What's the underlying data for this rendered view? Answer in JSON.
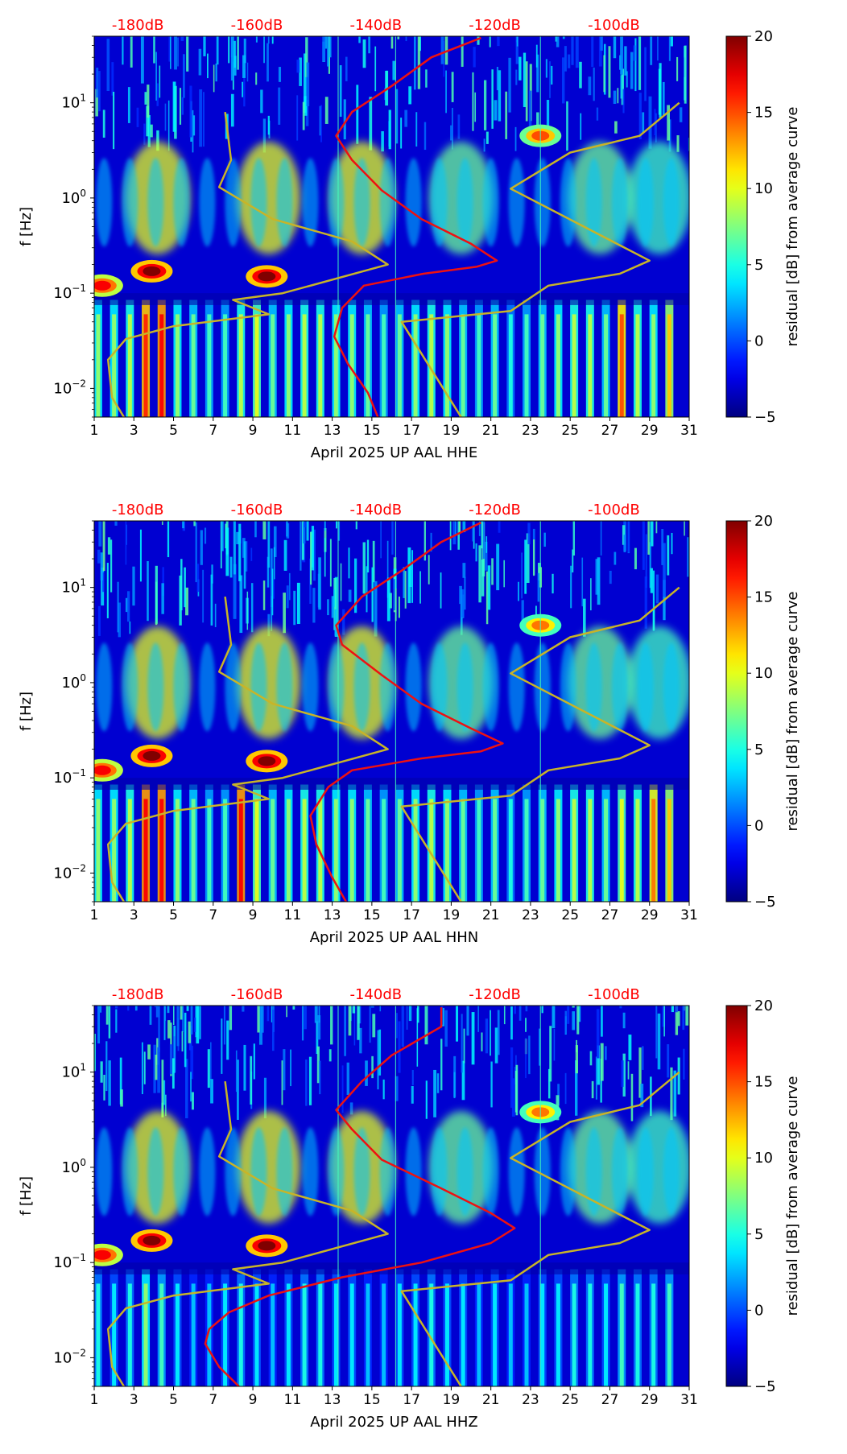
{
  "chart_data": [
    {
      "type": "heatmap",
      "channel": "HHE",
      "xlabel": "April 2025 UP AAL  HHE",
      "ylabel": "f [Hz]",
      "xlim": [
        1,
        31
      ],
      "ylim": [
        0.005,
        50
      ],
      "xticks": [
        "1",
        "3",
        "5",
        "7",
        "9",
        "11",
        "13",
        "15",
        "17",
        "19",
        "21",
        "23",
        "25",
        "27",
        "29",
        "31"
      ],
      "yticks": [
        {
          "value": 0.01,
          "base": "10",
          "exp": "−2"
        },
        {
          "value": 0.1,
          "base": "10",
          "exp": "−1"
        },
        {
          "value": 1,
          "base": "10",
          "exp": "0"
        },
        {
          "value": 10,
          "base": "10",
          "exp": "1"
        }
      ],
      "top_labels": [
        "-180dB",
        "-160dB",
        "-140dB",
        "-120dB",
        "-100dB"
      ],
      "top_label_color": "#ff0000",
      "colorbar": {
        "label": "residual [dB] from average curve",
        "min": -5,
        "max": 20,
        "ticks": [
          "−5",
          "0",
          "5",
          "10",
          "15",
          "20"
        ]
      },
      "red_curve": {
        "name": "average PSD",
        "color": "#ee1111",
        "points": [
          [
            15.3,
            0.005
          ],
          [
            14.8,
            0.009
          ],
          [
            13.8,
            0.018
          ],
          [
            13.1,
            0.035
          ],
          [
            13.5,
            0.07
          ],
          [
            14.6,
            0.12
          ],
          [
            17.6,
            0.16
          ],
          [
            20.3,
            0.19
          ],
          [
            21.3,
            0.22
          ],
          [
            20.0,
            0.33
          ],
          [
            17.5,
            0.6
          ],
          [
            15.5,
            1.2
          ],
          [
            14.0,
            2.5
          ],
          [
            13.2,
            4.5
          ],
          [
            14.0,
            8
          ],
          [
            16.0,
            15
          ],
          [
            18.0,
            30
          ],
          [
            20.5,
            48
          ]
        ]
      },
      "noise_model": {
        "name": "noise model",
        "color": "#c8b428",
        "points": [
          [
            2.5,
            0.005
          ],
          [
            1.9,
            0.008
          ],
          [
            1.7,
            0.02
          ],
          [
            2.6,
            0.033
          ],
          [
            5.0,
            0.045
          ],
          [
            9.8,
            0.06
          ],
          [
            8.0,
            0.085
          ],
          [
            10.5,
            0.1
          ],
          [
            15.8,
            0.2
          ],
          [
            14.0,
            0.35
          ],
          [
            10.0,
            0.6
          ],
          [
            7.3,
            1.3
          ],
          [
            7.9,
            2.5
          ],
          [
            7.6,
            8
          ]
        ]
      },
      "noise_model_2": {
        "name": "noise model",
        "color": "#c8b428",
        "points": [
          [
            19.5,
            0.005
          ],
          [
            16.5,
            0.05
          ],
          [
            22.0,
            0.065
          ],
          [
            23.9,
            0.12
          ],
          [
            27.5,
            0.16
          ],
          [
            29.0,
            0.22
          ],
          [
            22.0,
            1.25
          ],
          [
            25.0,
            3
          ],
          [
            28.5,
            4.5
          ],
          [
            30.5,
            10
          ]
        ]
      },
      "hot_spots": [
        {
          "x": 3.9,
          "f": 0.17,
          "level": 20
        },
        {
          "x": 9.7,
          "f": 0.15,
          "level": 20
        },
        {
          "x": 1.4,
          "f": 0.12,
          "level": 17
        },
        {
          "x": 23.5,
          "f": 4.5,
          "level": 15
        }
      ],
      "band_days": [
        1.2,
        2,
        2.8,
        3.6,
        4.4,
        5.2,
        6,
        6.8,
        7.6,
        8.4,
        9.2,
        10,
        10.8,
        11.6,
        12.4,
        13.2,
        14,
        14.8,
        15.6,
        16.4,
        17.2,
        18,
        18.8,
        19.6,
        20.4,
        21.2,
        22,
        22.8,
        23.6,
        24.4,
        25.2,
        26,
        26.8,
        27.6,
        28.4,
        29.2,
        30
      ],
      "band_levels": [
        8,
        8,
        9,
        16,
        17,
        8,
        7,
        6,
        6,
        9,
        10,
        7,
        8,
        9,
        9,
        8,
        8,
        7,
        6,
        7,
        8,
        9,
        8,
        7,
        6,
        7,
        5,
        6,
        7,
        8,
        9,
        9,
        7,
        15,
        9,
        8,
        12
      ],
      "blob_days": [
        4.2,
        9.8,
        14.5,
        19.5,
        26.5,
        29.5
      ],
      "blob_levels": [
        10,
        10,
        10,
        7,
        7,
        6
      ]
    },
    {
      "type": "heatmap",
      "channel": "HHN",
      "xlabel": "April 2025 UP AAL  HHN",
      "ylabel": "f [Hz]",
      "xlim": [
        1,
        31
      ],
      "ylim": [
        0.005,
        50
      ],
      "xticks": [
        "1",
        "3",
        "5",
        "7",
        "9",
        "11",
        "13",
        "15",
        "17",
        "19",
        "21",
        "23",
        "25",
        "27",
        "29",
        "31"
      ],
      "yticks": [
        {
          "value": 0.01,
          "base": "10",
          "exp": "−2"
        },
        {
          "value": 0.1,
          "base": "10",
          "exp": "−1"
        },
        {
          "value": 1,
          "base": "10",
          "exp": "0"
        },
        {
          "value": 10,
          "base": "10",
          "exp": "1"
        }
      ],
      "top_labels": [
        "-180dB",
        "-160dB",
        "-140dB",
        "-120dB",
        "-100dB"
      ],
      "top_label_color": "#ff0000",
      "colorbar": {
        "label": "residual [dB] from average curve",
        "min": -5,
        "max": 20,
        "ticks": [
          "−5",
          "0",
          "5",
          "10",
          "15",
          "20"
        ]
      },
      "red_curve": {
        "name": "average PSD",
        "color": "#ee1111",
        "points": [
          [
            13.7,
            0.005
          ],
          [
            13.0,
            0.009
          ],
          [
            12.2,
            0.02
          ],
          [
            11.9,
            0.04
          ],
          [
            12.8,
            0.08
          ],
          [
            14.0,
            0.12
          ],
          [
            17.5,
            0.16
          ],
          [
            20.5,
            0.19
          ],
          [
            21.6,
            0.23
          ],
          [
            20.0,
            0.33
          ],
          [
            17.5,
            0.6
          ],
          [
            15.5,
            1.2
          ],
          [
            13.5,
            2.5
          ],
          [
            13.2,
            4
          ],
          [
            14.5,
            8
          ],
          [
            16.5,
            15
          ],
          [
            18.5,
            30
          ],
          [
            20.5,
            48
          ]
        ]
      },
      "noise_model": {
        "name": "noise model",
        "color": "#c8b428",
        "points": [
          [
            2.5,
            0.005
          ],
          [
            1.9,
            0.008
          ],
          [
            1.7,
            0.02
          ],
          [
            2.6,
            0.033
          ],
          [
            5.0,
            0.045
          ],
          [
            9.8,
            0.06
          ],
          [
            8.0,
            0.085
          ],
          [
            10.5,
            0.1
          ],
          [
            15.8,
            0.2
          ],
          [
            14.0,
            0.35
          ],
          [
            10.0,
            0.6
          ],
          [
            7.3,
            1.3
          ],
          [
            7.9,
            2.5
          ],
          [
            7.6,
            8
          ]
        ]
      },
      "noise_model_2": {
        "name": "noise model",
        "color": "#c8b428",
        "points": [
          [
            19.5,
            0.005
          ],
          [
            16.5,
            0.05
          ],
          [
            22.0,
            0.065
          ],
          [
            23.9,
            0.12
          ],
          [
            27.5,
            0.16
          ],
          [
            29.0,
            0.22
          ],
          [
            22.0,
            1.25
          ],
          [
            25.0,
            3
          ],
          [
            28.5,
            4.5
          ],
          [
            30.5,
            10
          ]
        ]
      },
      "hot_spots": [
        {
          "x": 3.9,
          "f": 0.17,
          "level": 20
        },
        {
          "x": 9.7,
          "f": 0.15,
          "level": 20
        },
        {
          "x": 1.4,
          "f": 0.12,
          "level": 17
        },
        {
          "x": 23.5,
          "f": 4,
          "level": 14
        }
      ],
      "band_days": [
        1.2,
        2,
        2.8,
        3.6,
        4.4,
        5.2,
        6,
        6.8,
        7.6,
        8.4,
        9.2,
        10,
        10.8,
        11.6,
        12.4,
        13.2,
        14,
        14.8,
        15.6,
        16.4,
        17.2,
        18,
        18.8,
        19.6,
        20.4,
        21.2,
        22,
        22.8,
        23.6,
        24.4,
        25.2,
        26,
        26.8,
        27.6,
        28.4,
        29.2,
        30
      ],
      "band_levels": [
        8,
        8,
        9,
        17,
        17,
        8,
        7,
        6,
        6,
        17,
        10,
        7,
        8,
        9,
        9,
        8,
        8,
        7,
        6,
        7,
        8,
        9,
        8,
        7,
        6,
        7,
        5,
        6,
        7,
        8,
        9,
        9,
        7,
        10,
        9,
        14,
        12
      ],
      "blob_days": [
        4.2,
        9.8,
        14.5,
        19.5,
        26.5,
        29.5
      ],
      "blob_levels": [
        10,
        10,
        10,
        7,
        7,
        6
      ]
    },
    {
      "type": "heatmap",
      "channel": "HHZ",
      "xlabel": "April 2025 UP AAL  HHZ",
      "ylabel": "f [Hz]",
      "xlim": [
        1,
        31
      ],
      "ylim": [
        0.005,
        50
      ],
      "xticks": [
        "1",
        "3",
        "5",
        "7",
        "9",
        "11",
        "13",
        "15",
        "17",
        "19",
        "21",
        "23",
        "25",
        "27",
        "29",
        "31"
      ],
      "yticks": [
        {
          "value": 0.01,
          "base": "10",
          "exp": "−2"
        },
        {
          "value": 0.1,
          "base": "10",
          "exp": "−1"
        },
        {
          "value": 1,
          "base": "10",
          "exp": "0"
        },
        {
          "value": 10,
          "base": "10",
          "exp": "1"
        }
      ],
      "top_labels": [
        "-180dB",
        "-160dB",
        "-140dB",
        "-120dB",
        "-100dB"
      ],
      "top_label_color": "#ff0000",
      "colorbar": {
        "label": "residual [dB] from average curve",
        "min": -5,
        "max": 20,
        "ticks": [
          "−5",
          "0",
          "5",
          "10",
          "15",
          "20"
        ]
      },
      "red_curve": {
        "name": "average PSD",
        "color": "#ee1111",
        "points": [
          [
            8.3,
            0.005
          ],
          [
            7.3,
            0.008
          ],
          [
            6.6,
            0.014
          ],
          [
            6.8,
            0.02
          ],
          [
            7.8,
            0.03
          ],
          [
            9.8,
            0.045
          ],
          [
            13.5,
            0.07
          ],
          [
            17.5,
            0.1
          ],
          [
            21.0,
            0.16
          ],
          [
            22.2,
            0.23
          ],
          [
            21.0,
            0.33
          ],
          [
            18.5,
            0.6
          ],
          [
            15.5,
            1.2
          ],
          [
            14.0,
            2.5
          ],
          [
            13.2,
            4
          ],
          [
            14.5,
            8
          ],
          [
            16.0,
            15
          ],
          [
            18.5,
            30
          ],
          [
            18.5,
            48
          ]
        ]
      },
      "noise_model": {
        "name": "noise model",
        "color": "#c8b428",
        "points": [
          [
            2.5,
            0.005
          ],
          [
            1.9,
            0.008
          ],
          [
            1.7,
            0.02
          ],
          [
            2.6,
            0.033
          ],
          [
            5.0,
            0.045
          ],
          [
            9.8,
            0.06
          ],
          [
            8.0,
            0.085
          ],
          [
            10.5,
            0.1
          ],
          [
            15.8,
            0.2
          ],
          [
            14.0,
            0.35
          ],
          [
            10.0,
            0.6
          ],
          [
            7.3,
            1.3
          ],
          [
            7.9,
            2.5
          ],
          [
            7.6,
            8
          ]
        ]
      },
      "noise_model_2": {
        "name": "noise model",
        "color": "#c8b428",
        "points": [
          [
            19.5,
            0.005
          ],
          [
            16.5,
            0.05
          ],
          [
            22.0,
            0.065
          ],
          [
            23.9,
            0.12
          ],
          [
            27.5,
            0.16
          ],
          [
            29.0,
            0.22
          ],
          [
            22.0,
            1.25
          ],
          [
            25.0,
            3
          ],
          [
            28.5,
            4.5
          ],
          [
            30.5,
            10
          ]
        ]
      },
      "hot_spots": [
        {
          "x": 3.9,
          "f": 0.17,
          "level": 20
        },
        {
          "x": 9.7,
          "f": 0.15,
          "level": 20
        },
        {
          "x": 1.4,
          "f": 0.12,
          "level": 17
        },
        {
          "x": 23.5,
          "f": 3.8,
          "level": 14
        }
      ],
      "band_days": [
        1.2,
        2,
        2.8,
        3.6,
        4.4,
        5.2,
        6,
        6.8,
        7.6,
        8.4,
        9.2,
        10,
        10.8,
        11.6,
        12.4,
        13.2,
        14,
        14.8,
        15.6,
        16.4,
        17.2,
        18,
        18.8,
        19.6,
        20.4,
        21.2,
        22,
        22.8,
        23.6,
        24.4,
        25.2,
        26,
        26.8,
        27.6,
        28.4,
        29.2,
        30
      ],
      "band_levels": [
        5,
        4,
        5,
        8,
        6,
        4,
        3,
        3,
        4,
        5,
        4,
        3,
        4,
        5,
        5,
        4,
        4,
        3,
        3,
        4,
        4,
        5,
        4,
        4,
        3,
        4,
        3,
        3,
        4,
        4,
        5,
        5,
        4,
        6,
        5,
        5,
        6
      ],
      "blob_days": [
        4.2,
        9.8,
        14.5,
        19.5,
        26.5,
        29.5
      ],
      "blob_levels": [
        10,
        10,
        10,
        7,
        7,
        6
      ]
    }
  ]
}
